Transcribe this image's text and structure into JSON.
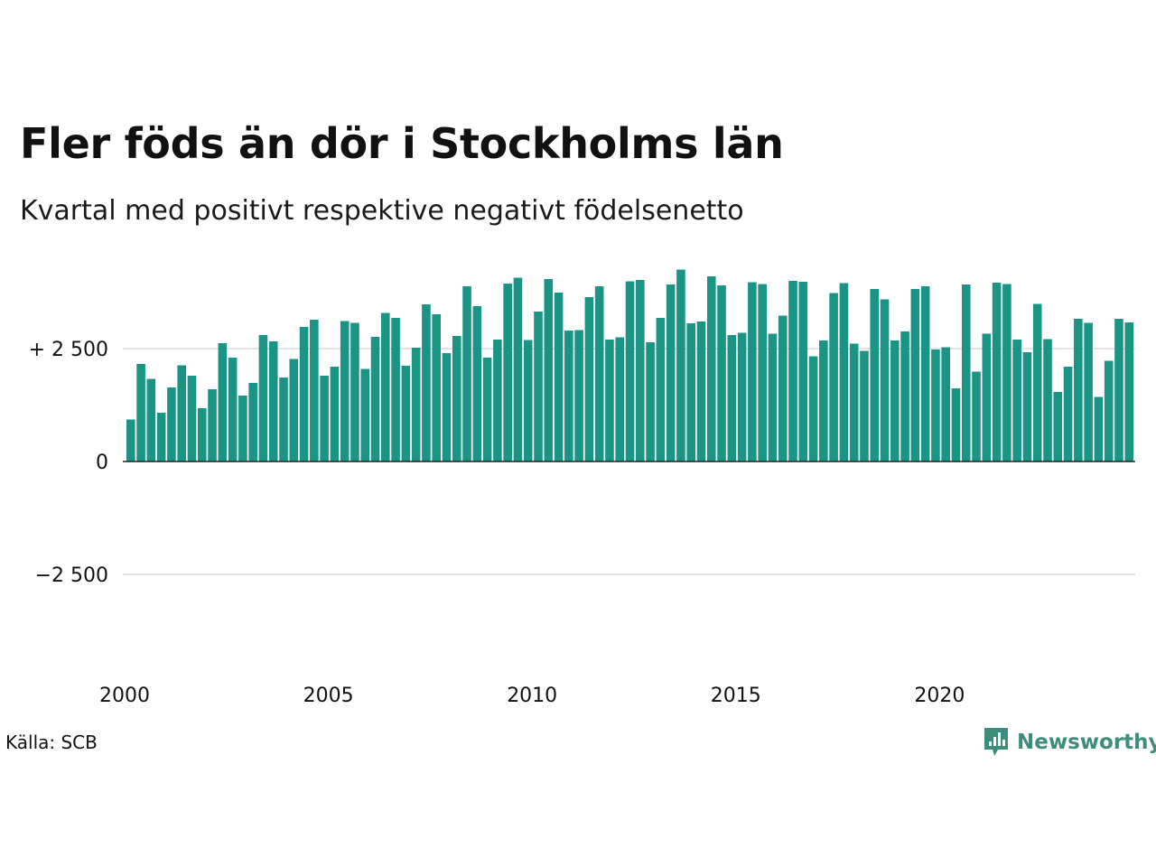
{
  "title": "Fler föds än dör i Stockholms län",
  "subtitle": "Kvartal med positivt respektive negativt födelsenetto",
  "source": "Källa: SCB",
  "brand": {
    "name": "Newsworthy",
    "icon": "newsworthy-logo-icon",
    "color": "#3d8c7c"
  },
  "colors": {
    "positive": "#1a9585",
    "grid": "#e3e3e3",
    "zero_line": "#222222"
  },
  "chart_data": {
    "type": "bar",
    "start": "2000 Q1",
    "frequency": "quarterly",
    "ylim": [
      -5000,
      9000
    ],
    "y_ticks": [
      {
        "value": 2500,
        "label": "+ 2 500"
      },
      {
        "value": 0,
        "label": "0"
      },
      {
        "value": -2500,
        "label": "−2 500"
      }
    ],
    "x_ticks": [
      {
        "label": "2000",
        "year": 2000
      },
      {
        "label": "2005",
        "year": 2005
      },
      {
        "label": "2010",
        "year": 2010
      },
      {
        "label": "2015",
        "year": 2015
      },
      {
        "label": "2020",
        "year": 2020
      }
    ],
    "grid": true,
    "values": [
      930,
      2160,
      1830,
      1080,
      1640,
      2130,
      1900,
      1180,
      1600,
      2620,
      2300,
      1460,
      1740,
      2800,
      2660,
      1860,
      2270,
      2980,
      3140,
      1900,
      2100,
      3110,
      3070,
      2050,
      2760,
      3290,
      3180,
      2120,
      2520,
      3480,
      3260,
      2400,
      2780,
      3880,
      3440,
      2300,
      2700,
      3940,
      4070,
      2690,
      3320,
      4040,
      3740,
      2900,
      2910,
      3640,
      3880,
      2700,
      2750,
      3990,
      4020,
      2640,
      3180,
      3920,
      4250,
      3060,
      3100,
      4100,
      3900,
      2800,
      2850,
      3970,
      3930,
      2830,
      3230,
      4000,
      3980,
      2330,
      2680,
      3730,
      3950,
      2610,
      2450,
      3820,
      3590,
      2680,
      2880,
      3820,
      3880,
      2480,
      2530,
      1620,
      3920,
      1990,
      2830,
      3960,
      3930,
      2700,
      2420,
      3490,
      2710,
      1540,
      2100,
      3160,
      3070,
      1430,
      2230,
      3160,
      3080
    ]
  }
}
